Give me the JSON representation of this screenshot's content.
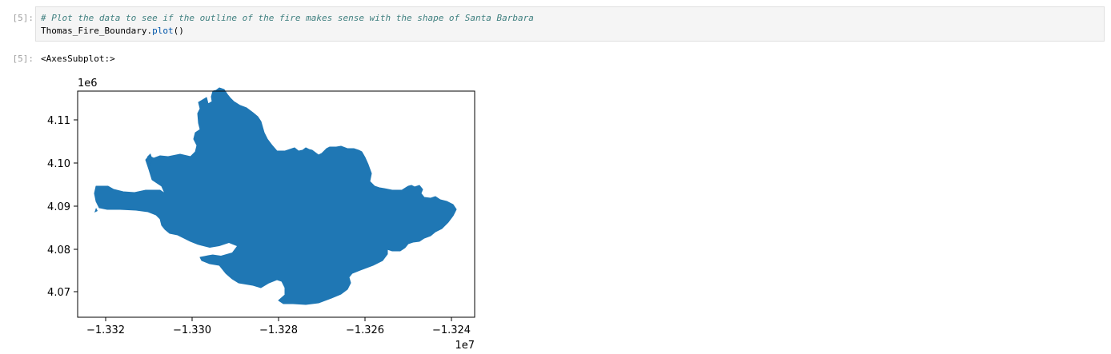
{
  "cell": {
    "input_prompt": "[5]:",
    "code": {
      "comment": "# Plot the data to see if the outline of the fire makes sense with the shape of Santa Barbara",
      "line2_object": "Thomas_Fire_Boundary.",
      "line2_method": "plot",
      "line2_parens": "()"
    },
    "output_prompt": "[5]:",
    "output_text": "<AxesSubplot:>"
  },
  "chart_data": {
    "type": "polygon-map",
    "x_ticks": [
      "−1.332",
      "−1.330",
      "−1.328",
      "−1.326",
      "−1.324"
    ],
    "x_tick_values": [
      -1.332,
      -1.33,
      -1.328,
      -1.326,
      -1.324
    ],
    "x_offset_label": "1e7",
    "y_ticks": [
      "4.11",
      "4.10",
      "4.09",
      "4.08",
      "4.07"
    ],
    "y_tick_values": [
      4.11,
      4.1,
      4.09,
      4.08,
      4.07
    ],
    "y_offset_label": "1e6",
    "fill_color": "#1f77b4",
    "grid": false
  }
}
